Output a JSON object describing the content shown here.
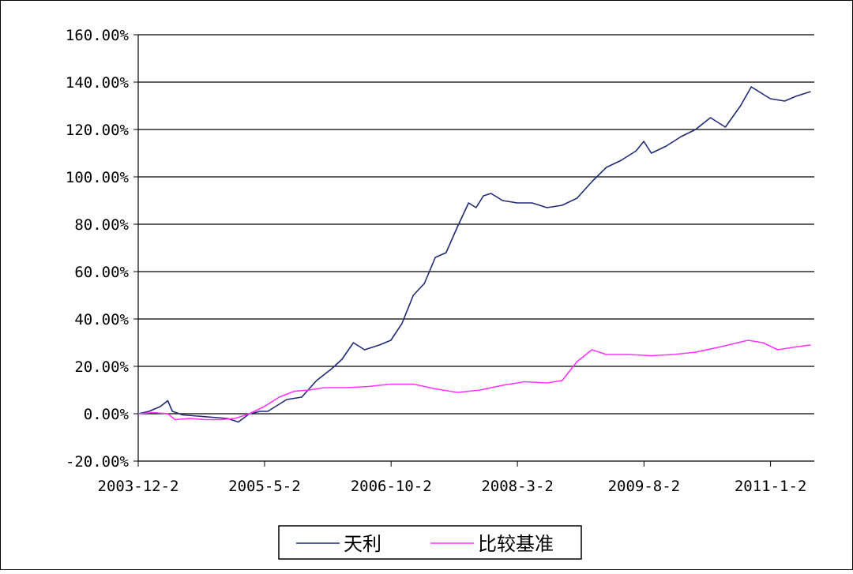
{
  "chart_data": {
    "type": "line",
    "title": "",
    "xlabel": "",
    "ylabel": "",
    "y_tick_labels": [
      "-20.00%",
      "0.00%",
      "20.00%",
      "40.00%",
      "60.00%",
      "80.00%",
      "100.00%",
      "120.00%",
      "140.00%",
      "160.00%"
    ],
    "y_tick_values": [
      -20,
      0,
      20,
      40,
      60,
      80,
      100,
      120,
      140,
      160
    ],
    "ylim": [
      -20,
      160
    ],
    "x_tick_labels": [
      "2003-12-2",
      "2005-5-2",
      "2006-10-2",
      "2008-3-2",
      "2009-8-2",
      "2011-1-2"
    ],
    "x_tick_values": [
      "2003-12-02",
      "2005-05-02",
      "2006-10-02",
      "2008-03-02",
      "2009-08-02",
      "2011-01-02"
    ],
    "xlim": [
      "2003-12-02",
      "2011-06-30"
    ],
    "grid": "horizontal",
    "legend_position": "bottom-center",
    "series": [
      {
        "name": "天利",
        "color": "#1f2a78",
        "points": [
          [
            "2003-12-02",
            0
          ],
          [
            "2004-01-15",
            1
          ],
          [
            "2004-03-01",
            3
          ],
          [
            "2004-04-01",
            5.5
          ],
          [
            "2004-04-20",
            1
          ],
          [
            "2004-06-01",
            -0.5
          ],
          [
            "2004-08-01",
            -1
          ],
          [
            "2004-10-01",
            -1.5
          ],
          [
            "2004-12-01",
            -2
          ],
          [
            "2005-01-15",
            -3.5
          ],
          [
            "2005-03-01",
            0
          ],
          [
            "2005-04-15",
            1
          ],
          [
            "2005-05-15",
            1
          ],
          [
            "2005-06-15",
            3
          ],
          [
            "2005-08-01",
            6
          ],
          [
            "2005-10-01",
            7
          ],
          [
            "2005-12-01",
            14
          ],
          [
            "2006-02-01",
            19
          ],
          [
            "2006-03-15",
            23
          ],
          [
            "2006-05-01",
            30
          ],
          [
            "2006-06-15",
            27
          ],
          [
            "2006-08-15",
            29
          ],
          [
            "2006-10-01",
            31
          ],
          [
            "2006-11-15",
            38
          ],
          [
            "2007-01-01",
            50
          ],
          [
            "2007-02-15",
            55
          ],
          [
            "2007-04-01",
            66
          ],
          [
            "2007-05-15",
            68
          ],
          [
            "2007-07-01",
            79
          ],
          [
            "2007-08-15",
            89
          ],
          [
            "2007-09-15",
            87
          ],
          [
            "2007-10-15",
            92
          ],
          [
            "2007-11-15",
            93
          ],
          [
            "2008-01-01",
            90
          ],
          [
            "2008-03-01",
            89
          ],
          [
            "2008-05-01",
            89
          ],
          [
            "2008-07-01",
            87
          ],
          [
            "2008-09-01",
            88
          ],
          [
            "2008-11-01",
            91
          ],
          [
            "2009-01-01",
            98
          ],
          [
            "2009-03-01",
            104
          ],
          [
            "2009-05-01",
            107
          ],
          [
            "2009-07-01",
            111
          ],
          [
            "2009-08-01",
            115
          ],
          [
            "2009-09-01",
            110
          ],
          [
            "2009-11-01",
            113
          ],
          [
            "2010-01-01",
            117
          ],
          [
            "2010-03-01",
            120
          ],
          [
            "2010-05-01",
            125
          ],
          [
            "2010-07-01",
            121
          ],
          [
            "2010-09-01",
            130
          ],
          [
            "2010-10-15",
            138
          ],
          [
            "2010-11-15",
            136
          ],
          [
            "2011-01-01",
            133
          ],
          [
            "2011-03-01",
            132
          ],
          [
            "2011-04-15",
            134
          ],
          [
            "2011-06-15",
            136
          ]
        ]
      },
      {
        "name": "比较基准",
        "color": "#ff33ff",
        "points": [
          [
            "2003-12-02",
            0
          ],
          [
            "2004-02-01",
            0.5
          ],
          [
            "2004-04-01",
            0
          ],
          [
            "2004-05-01",
            -2.5
          ],
          [
            "2004-07-01",
            -2
          ],
          [
            "2004-09-01",
            -2.5
          ],
          [
            "2004-11-01",
            -2.5
          ],
          [
            "2005-01-01",
            -2
          ],
          [
            "2005-03-01",
            0
          ],
          [
            "2005-05-01",
            3
          ],
          [
            "2005-07-01",
            7
          ],
          [
            "2005-09-01",
            9.5
          ],
          [
            "2005-11-01",
            10
          ],
          [
            "2006-01-01",
            11
          ],
          [
            "2006-04-01",
            11
          ],
          [
            "2006-07-01",
            11.5
          ],
          [
            "2006-10-01",
            12.5
          ],
          [
            "2007-01-01",
            12.5
          ],
          [
            "2007-04-01",
            10.5
          ],
          [
            "2007-07-01",
            9
          ],
          [
            "2007-10-01",
            10
          ],
          [
            "2008-01-01",
            12
          ],
          [
            "2008-04-01",
            13.5
          ],
          [
            "2008-07-01",
            13
          ],
          [
            "2008-09-01",
            14
          ],
          [
            "2008-11-01",
            22
          ],
          [
            "2009-01-01",
            27
          ],
          [
            "2009-03-01",
            25
          ],
          [
            "2009-06-01",
            25
          ],
          [
            "2009-09-01",
            24.5
          ],
          [
            "2009-12-01",
            25
          ],
          [
            "2010-03-01",
            26
          ],
          [
            "2010-06-01",
            28
          ],
          [
            "2010-08-01",
            29.5
          ],
          [
            "2010-10-01",
            31
          ],
          [
            "2010-12-01",
            30
          ],
          [
            "2011-02-01",
            27
          ],
          [
            "2011-04-01",
            28
          ],
          [
            "2011-06-15",
            29
          ]
        ]
      }
    ]
  }
}
